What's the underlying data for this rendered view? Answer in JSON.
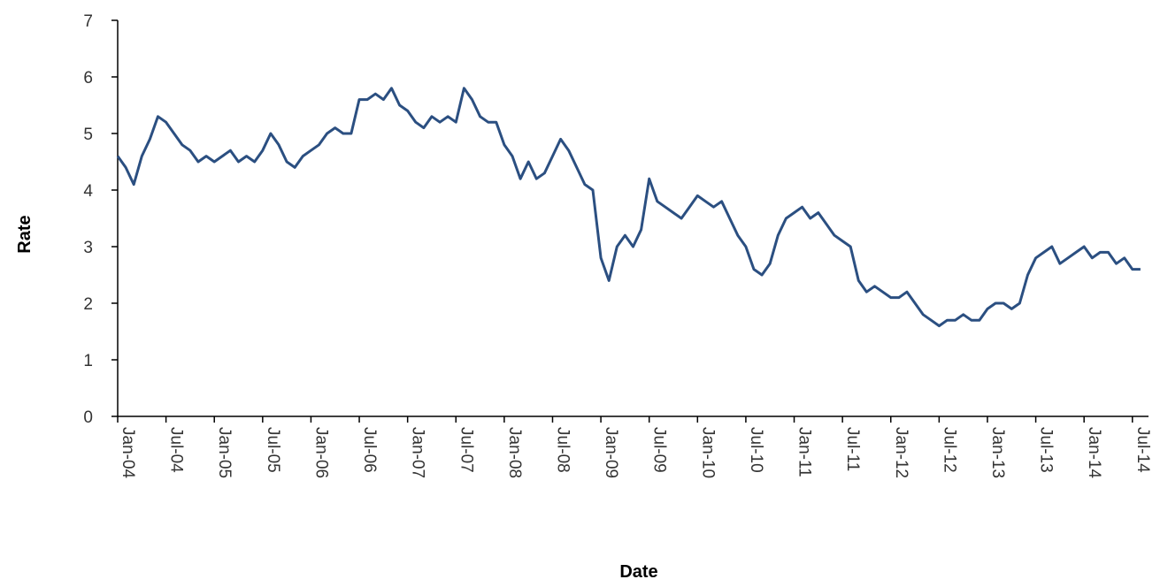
{
  "chart_data": {
    "type": "line",
    "title": "",
    "xlabel": "Date",
    "ylabel": "Rate",
    "ylim": [
      0,
      7
    ],
    "yticks": [
      "0",
      "1",
      "2",
      "3",
      "4",
      "5",
      "6",
      "7"
    ],
    "xticks": [
      "Jan-04",
      "Jul-04",
      "Jan-05",
      "Jul-05",
      "Jan-06",
      "Jul-06",
      "Jan-07",
      "Jul-07",
      "Jan-08",
      "Jul-08",
      "Jan-09",
      "Jul-09",
      "Jan-10",
      "Jul-10",
      "Jan-11",
      "Jul-11",
      "Jan-12",
      "Jul-12",
      "Jan-13",
      "Jul-13",
      "Jan-14",
      "Jul-14"
    ],
    "xlim": [
      "2004-01",
      "2014-09"
    ],
    "grid": false,
    "legend": "none",
    "line_color": "#2B4F81",
    "series": [
      {
        "x": [
          "2004-01",
          "2004-02",
          "2004-03",
          "2004-04",
          "2004-05",
          "2004-06",
          "2004-07",
          "2004-08",
          "2004-09",
          "2004-10",
          "2004-11",
          "2004-12",
          "2005-01",
          "2005-02",
          "2005-03",
          "2005-04",
          "2005-05",
          "2005-06",
          "2005-07",
          "2005-08",
          "2005-09",
          "2005-10",
          "2005-11",
          "2005-12",
          "2006-01",
          "2006-02",
          "2006-03",
          "2006-04",
          "2006-05",
          "2006-06",
          "2006-07",
          "2006-08",
          "2006-09",
          "2006-10",
          "2006-11",
          "2006-12",
          "2007-01",
          "2007-02",
          "2007-03",
          "2007-04",
          "2007-05",
          "2007-06",
          "2007-07",
          "2007-08",
          "2007-09",
          "2007-10",
          "2007-11",
          "2007-12",
          "2008-01",
          "2008-02",
          "2008-03",
          "2008-04",
          "2008-05",
          "2008-06",
          "2008-07",
          "2008-08",
          "2008-09",
          "2008-10",
          "2008-11",
          "2008-12",
          "2009-01",
          "2009-02",
          "2009-03",
          "2009-04",
          "2009-05",
          "2009-06",
          "2009-07",
          "2009-08",
          "2009-09",
          "2009-10",
          "2009-11",
          "2009-12",
          "2010-01",
          "2010-02",
          "2010-03",
          "2010-04",
          "2010-05",
          "2010-06",
          "2010-07",
          "2010-08",
          "2010-09",
          "2010-10",
          "2010-11",
          "2010-12",
          "2011-01",
          "2011-02",
          "2011-03",
          "2011-04",
          "2011-05",
          "2011-06",
          "2011-07",
          "2011-08",
          "2011-09",
          "2011-10",
          "2011-11",
          "2011-12",
          "2012-01",
          "2012-02",
          "2012-03",
          "2012-04",
          "2012-05",
          "2012-06",
          "2012-07",
          "2012-08",
          "2012-09",
          "2012-10",
          "2012-11",
          "2012-12",
          "2013-01",
          "2013-02",
          "2013-03",
          "2013-04",
          "2013-05",
          "2013-06",
          "2013-07",
          "2013-08",
          "2013-09",
          "2013-10",
          "2013-11",
          "2013-12",
          "2014-01",
          "2014-02",
          "2014-03",
          "2014-04",
          "2014-05",
          "2014-06",
          "2014-07",
          "2014-08"
        ],
        "values": [
          4.6,
          4.4,
          4.1,
          4.6,
          4.9,
          5.3,
          5.2,
          5.0,
          4.8,
          4.7,
          4.5,
          4.6,
          4.5,
          4.6,
          4.7,
          4.5,
          4.6,
          4.5,
          4.7,
          5.0,
          4.8,
          4.5,
          4.4,
          4.6,
          4.7,
          4.8,
          5.0,
          5.1,
          5.0,
          5.0,
          5.6,
          5.6,
          5.7,
          5.6,
          5.8,
          5.5,
          5.4,
          5.2,
          5.1,
          5.3,
          5.2,
          5.3,
          5.2,
          5.8,
          5.6,
          5.3,
          5.2,
          5.2,
          4.8,
          4.6,
          4.2,
          4.5,
          4.2,
          4.3,
          4.6,
          4.9,
          4.7,
          4.4,
          4.1,
          4.0,
          2.8,
          2.4,
          3.0,
          3.2,
          3.0,
          3.3,
          4.2,
          3.8,
          3.7,
          3.6,
          3.5,
          3.7,
          3.9,
          3.8,
          3.7,
          3.8,
          3.5,
          3.2,
          3.0,
          2.6,
          2.5,
          2.7,
          3.2,
          3.5,
          3.6,
          3.7,
          3.5,
          3.6,
          3.4,
          3.2,
          3.1,
          3.0,
          2.4,
          2.2,
          2.3,
          2.2,
          2.1,
          2.1,
          2.2,
          2.0,
          1.8,
          1.7,
          1.6,
          1.7,
          1.7,
          1.8,
          1.7,
          1.7,
          1.9,
          2.0,
          2.0,
          1.9,
          2.0,
          2.5,
          2.8,
          2.9,
          3.0,
          2.7,
          2.8,
          2.9,
          3.0,
          2.8,
          2.9,
          2.9,
          2.7,
          2.8,
          2.6,
          2.6
        ]
      }
    ]
  }
}
